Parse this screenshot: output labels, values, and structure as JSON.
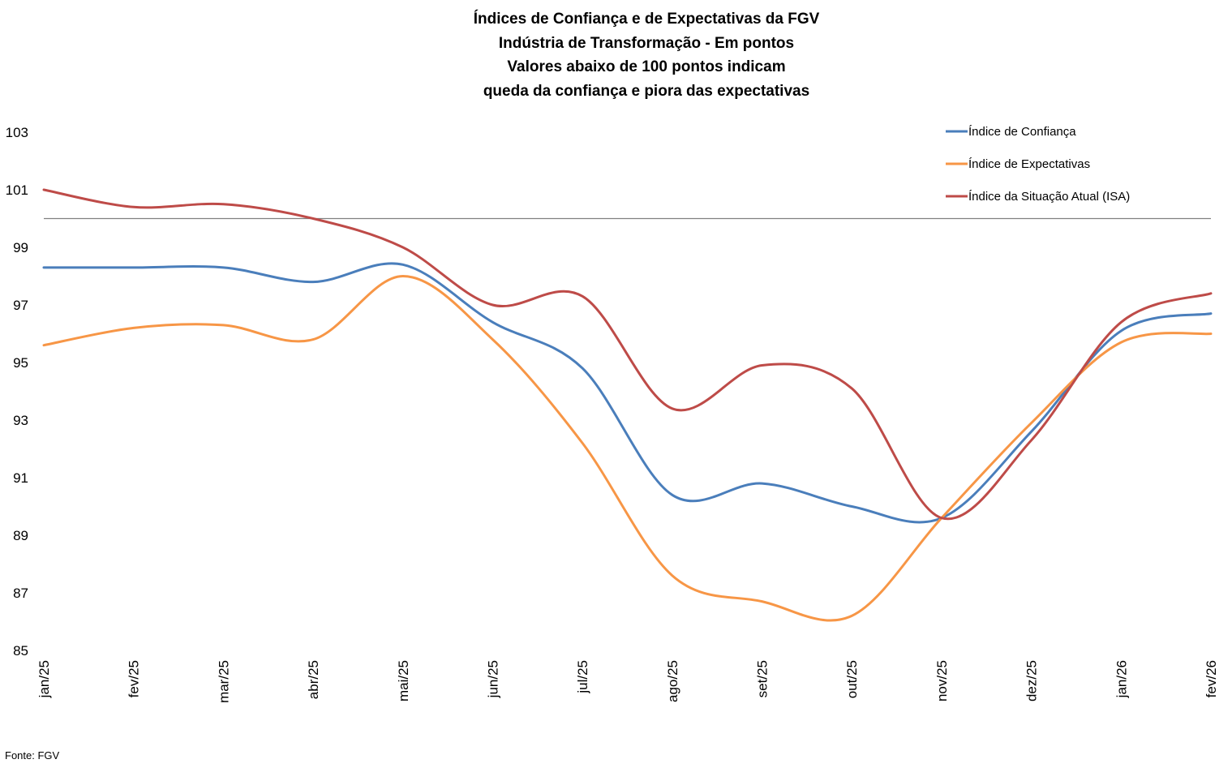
{
  "chart_data": {
    "type": "line",
    "title_lines": [
      "Índices de Confiança e de Expectativas da FGV",
      "Indústria de Transformação - Em pontos",
      "Valores abaixo de 100 pontos indicam",
      "queda da confiança e piora das expectativas"
    ],
    "xlabel": "",
    "ylabel": "",
    "categories": [
      "jan/25",
      "fev/25",
      "mar/25",
      "abr/25",
      "mai/25",
      "jun/25",
      "jul/25",
      "ago/25",
      "set/25",
      "out/25",
      "nov/25",
      "dez/25",
      "jan/26",
      "fev/26"
    ],
    "ylim": [
      85,
      103
    ],
    "yticks": [
      103,
      101,
      99,
      97,
      95,
      93,
      91,
      89,
      87,
      85
    ],
    "reference_line": {
      "value": 100,
      "color": "#808080"
    },
    "grid": false,
    "smooth": true,
    "legend_position": "top-right",
    "series": [
      {
        "name": "Índice de Confiança",
        "color": "#4A7EBB",
        "values": [
          98.3,
          98.3,
          98.3,
          97.8,
          98.4,
          96.4,
          94.8,
          90.4,
          90.8,
          90.0,
          89.6,
          92.6,
          96.1,
          96.7
        ]
      },
      {
        "name": "Índice de Expectativas",
        "color": "#F79646",
        "values": [
          95.6,
          96.2,
          96.3,
          95.8,
          98.0,
          95.8,
          92.2,
          87.6,
          86.7,
          86.2,
          89.6,
          92.9,
          95.7,
          96.0
        ]
      },
      {
        "name": "Índice da Situação Atual (ISA)",
        "color": "#BE4B48",
        "values": [
          101.0,
          100.4,
          100.5,
          100.0,
          99.0,
          97.0,
          97.3,
          93.4,
          94.9,
          94.1,
          89.6,
          92.3,
          96.4,
          97.4
        ]
      }
    ],
    "source": "Fonte: FGV"
  }
}
